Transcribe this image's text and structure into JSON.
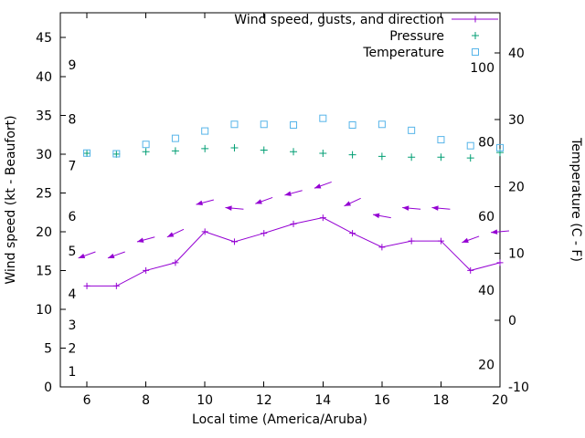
{
  "chart_data": {
    "type": "line",
    "title": "",
    "xlabel": "Local time (America/Aruba)",
    "ylabel_left": "Wind speed (kt - Beaufort)",
    "ylabel_right": "Temperature (C - F)",
    "x_ticks": [
      6,
      8,
      10,
      12,
      14,
      16,
      18,
      20
    ],
    "xlim": [
      5.1,
      20
    ],
    "left_ticks": [
      0,
      5,
      10,
      15,
      20,
      25,
      30,
      35,
      40,
      45
    ],
    "left_lim": [
      0,
      48.2
    ],
    "right_ticks": [
      -10,
      0,
      10,
      20,
      30,
      40
    ],
    "right_lim": [
      -10,
      46
    ],
    "grid": false,
    "legend_position": "top-right-inside",
    "beaufort_scale_labels": [
      {
        "text": "1",
        "kt": 2
      },
      {
        "text": "2",
        "kt": 5
      },
      {
        "text": "3",
        "kt": 8
      },
      {
        "text": "4",
        "kt": 12
      },
      {
        "text": "5",
        "kt": 17.5
      },
      {
        "text": "6",
        "kt": 22
      },
      {
        "text": "7",
        "kt": 28.5
      },
      {
        "text": "8",
        "kt": 34.5
      },
      {
        "text": "9",
        "kt": 41.5
      }
    ],
    "fahrenheit_labels": [
      {
        "text": "20",
        "f": 20
      },
      {
        "text": "40",
        "f": 40
      },
      {
        "text": "60",
        "f": 60
      },
      {
        "text": "80",
        "f": 80
      },
      {
        "text": "100",
        "f": 100
      }
    ],
    "legend": [
      {
        "label": "Wind speed, gusts, and direction",
        "color": "#9400d3",
        "marker": "line-plus"
      },
      {
        "label": "Pressure",
        "color": "#009e73",
        "marker": "plus"
      },
      {
        "label": "Temperature",
        "color": "#56b4e9",
        "marker": "square"
      }
    ],
    "series": [
      {
        "name": "wind_speed",
        "axis": "left",
        "units": "kt",
        "color": "#9400d3",
        "style": "linespoints",
        "x": [
          6,
          7,
          8,
          9,
          10,
          11,
          12,
          13,
          14,
          15,
          16,
          17,
          18,
          19,
          20
        ],
        "values": [
          13,
          13,
          15,
          16,
          20,
          18.7,
          19.8,
          21,
          21.8,
          19.8,
          18,
          18.8,
          18.8,
          15,
          16
        ]
      },
      {
        "name": "wind_gusts",
        "axis": "left",
        "units": "kt",
        "color": "#9400d3",
        "style": "arrows",
        "x": [
          6,
          7,
          8,
          9,
          10,
          11,
          12,
          13,
          14,
          15,
          16,
          17,
          18,
          19,
          20
        ],
        "values": [
          17,
          17,
          19,
          19.8,
          23.8,
          23,
          24,
          25,
          26,
          23.8,
          22,
          23,
          23,
          19,
          20
        ],
        "direction_deg_from": [
          70,
          70,
          75,
          65,
          75,
          95,
          70,
          75,
          70,
          65,
          100,
          95,
          95,
          70,
          85
        ]
      },
      {
        "name": "pressure",
        "axis": "left",
        "units": "inHg",
        "color": "#009e73",
        "style": "points-plus",
        "x": [
          6,
          7,
          8,
          9,
          10,
          11,
          12,
          13,
          14,
          15,
          16,
          17,
          18,
          19,
          20
        ],
        "values": [
          30.1,
          30.0,
          30.3,
          30.4,
          30.7,
          30.8,
          30.5,
          30.3,
          30.1,
          29.9,
          29.7,
          29.6,
          29.6,
          29.5,
          30.2
        ]
      },
      {
        "name": "temperature",
        "axis": "right",
        "units": "C",
        "color": "#56b4e9",
        "style": "points-square",
        "x": [
          6,
          7,
          8,
          9,
          10,
          11,
          12,
          13,
          14,
          15,
          16,
          17,
          18,
          19,
          20
        ],
        "values": [
          25.0,
          24.9,
          26.3,
          27.2,
          28.3,
          29.3,
          29.3,
          29.2,
          30.2,
          29.2,
          29.3,
          28.4,
          27.0,
          26.1,
          25.8
        ]
      }
    ]
  }
}
